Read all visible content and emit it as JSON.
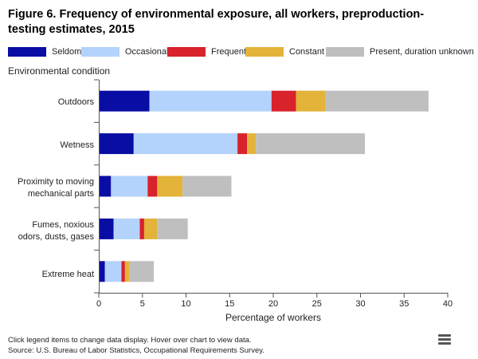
{
  "chart_data": {
    "type": "bar",
    "orientation": "horizontal",
    "stacked": true,
    "title": "Figure 6. Frequency of environmental exposure, all workers, preproduction-testing estimates, 2015",
    "title_lines": [
      "Figure 6. Frequency of environmental exposure, all workers, preproduction-",
      "testing estimates, 2015"
    ],
    "ylabel": "Environmental condition",
    "xlabel": "Percentage of workers",
    "xlim": [
      0,
      40
    ],
    "xticks": [
      0,
      5,
      10,
      15,
      20,
      25,
      30,
      35,
      40
    ],
    "grid": false,
    "legend_position": "top",
    "categories": [
      {
        "name": "Outdoors",
        "lines": [
          "Outdoors"
        ]
      },
      {
        "name": "Wetness",
        "lines": [
          "Wetness"
        ]
      },
      {
        "name": "Proximity to moving mechanical parts",
        "lines": [
          "Proximity to moving",
          "mechanical parts"
        ]
      },
      {
        "name": "Fumes, noxious odors, dusts, gases",
        "lines": [
          "Fumes, noxious",
          "odors, dusts, gases"
        ]
      },
      {
        "name": "Extreme heat",
        "lines": [
          "Extreme heat"
        ]
      }
    ],
    "series": [
      {
        "name": "Seldom",
        "color": "#0a0da3",
        "values": [
          5.8,
          4.0,
          1.4,
          1.7,
          0.7
        ]
      },
      {
        "name": "Occasional",
        "color": "#b3d3fc",
        "values": [
          14.0,
          11.9,
          4.2,
          3.0,
          1.9
        ]
      },
      {
        "name": "Frequent",
        "color": "#d8222c",
        "values": [
          2.8,
          1.1,
          1.1,
          0.5,
          0.4
        ]
      },
      {
        "name": "Constant",
        "color": "#e3b33a",
        "values": [
          3.4,
          1.0,
          2.9,
          1.5,
          0.5
        ]
      },
      {
        "name": "Present, duration unknown",
        "color": "#bfbfbf",
        "values": [
          11.8,
          12.5,
          5.6,
          3.5,
          2.8
        ]
      }
    ]
  },
  "footer": {
    "line1": "Click legend items to change data display. Hover over chart to view data.",
    "line2": "Source: U.S. Bureau of Labor Statistics, Occupational Requirements Survey."
  },
  "menu_icon": "hamburger-icon"
}
